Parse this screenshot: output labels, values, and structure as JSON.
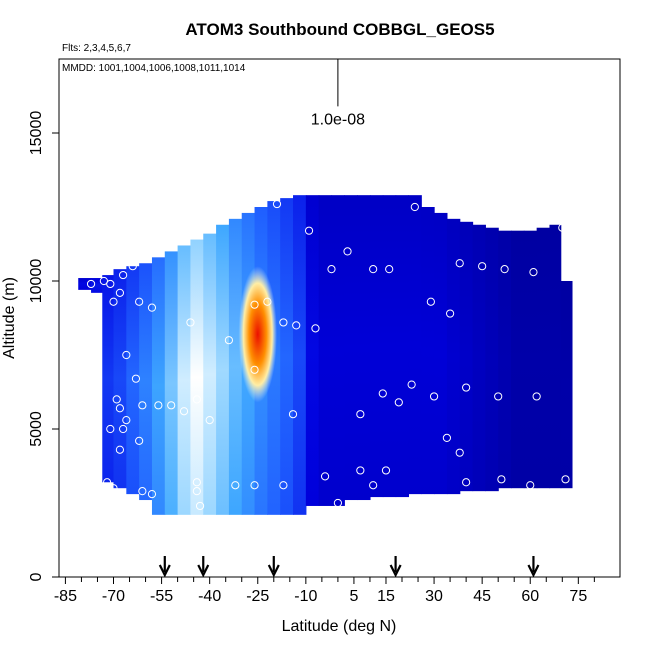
{
  "chart_data": {
    "type": "heatmap",
    "title": "ATOM3 Southbound COBBGL_GEOS5",
    "flights_note": "Flts: 2,3,4,5,6,7",
    "dates_note": "MMDD: 1001,1004,1006,1008,1011,1014",
    "scale_label": "1.0e-08",
    "xlabel": "Latitude (deg N)",
    "ylabel": "Altitude (m)",
    "xlim": [
      -87,
      88
    ],
    "ylim": [
      0,
      17500
    ],
    "x_tick_labels": [
      "-85",
      "-70",
      "-55",
      "-40",
      "-25",
      "-10",
      "5",
      "15",
      "30",
      "45",
      "60",
      "75"
    ],
    "x_tick_values": [
      -85,
      -70,
      -55,
      -40,
      -25,
      -10,
      5,
      15,
      30,
      45,
      60,
      75
    ],
    "y_tick_labels": [
      "0",
      "5000",
      "10000",
      "15000"
    ],
    "y_tick_values": [
      0,
      5000,
      10000,
      15000
    ],
    "grid": false,
    "colormap": [
      "#00008b",
      "#0000e0",
      "#1e5bff",
      "#3ea8ff",
      "#a6dcff",
      "#ffffff",
      "#ffe98a",
      "#ffb000",
      "#ff5a00",
      "#e60000"
    ],
    "field_columns": [
      {
        "x": -79,
        "bottom": 9700,
        "top": 10100,
        "value": 0.12
      },
      {
        "x": -75,
        "bottom": 9600,
        "top": 10100,
        "value": 0.14
      },
      {
        "x": -72,
        "bottom": 3200,
        "top": 10200,
        "value": 0.18
      },
      {
        "x": -68,
        "bottom": 3000,
        "top": 10400,
        "value": 0.2
      },
      {
        "x": -64,
        "bottom": 2800,
        "top": 10500,
        "value": 0.24
      },
      {
        "x": -60,
        "bottom": 2600,
        "top": 10600,
        "value": 0.28
      },
      {
        "x": -56,
        "bottom": 2100,
        "top": 10800,
        "value": 0.33
      },
      {
        "x": -52,
        "bottom": 2100,
        "top": 11000,
        "value": 0.4
      },
      {
        "x": -48,
        "bottom": 2100,
        "top": 11200,
        "value": 0.5
      },
      {
        "x": -44,
        "bottom": 2100,
        "top": 11400,
        "value": 0.56
      },
      {
        "x": -40,
        "bottom": 2100,
        "top": 11600,
        "value": 0.5
      },
      {
        "x": -36,
        "bottom": 2100,
        "top": 11900,
        "value": 0.44
      },
      {
        "x": -32,
        "bottom": 2100,
        "top": 12100,
        "value": 0.38
      },
      {
        "x": -28,
        "bottom": 2100,
        "top": 12300,
        "value": 0.34
      },
      {
        "x": -24,
        "bottom": 2100,
        "top": 12500,
        "value": 0.3
      },
      {
        "x": -20,
        "bottom": 2100,
        "top": 12700,
        "value": 0.27
      },
      {
        "x": -16,
        "bottom": 2100,
        "top": 12800,
        "value": 0.24
      },
      {
        "x": -12,
        "bottom": 2100,
        "top": 12900,
        "value": 0.2
      },
      {
        "x": -8,
        "bottom": 2400,
        "top": 12900,
        "value": 0.12
      },
      {
        "x": -4,
        "bottom": 2400,
        "top": 12900,
        "value": 0.1
      },
      {
        "x": 0,
        "bottom": 2400,
        "top": 12900,
        "value": 0.1
      },
      {
        "x": 4,
        "bottom": 2600,
        "top": 12900,
        "value": 0.1
      },
      {
        "x": 8,
        "bottom": 2600,
        "top": 12900,
        "value": 0.1
      },
      {
        "x": 12,
        "bottom": 2700,
        "top": 12900,
        "value": 0.1
      },
      {
        "x": 16,
        "bottom": 2700,
        "top": 12900,
        "value": 0.1
      },
      {
        "x": 20,
        "bottom": 2700,
        "top": 12900,
        "value": 0.1
      },
      {
        "x": 24,
        "bottom": 2800,
        "top": 12900,
        "value": 0.1
      },
      {
        "x": 28,
        "bottom": 2800,
        "top": 12500,
        "value": 0.1
      },
      {
        "x": 32,
        "bottom": 2800,
        "top": 12300,
        "value": 0.1
      },
      {
        "x": 36,
        "bottom": 2800,
        "top": 12100,
        "value": 0.09
      },
      {
        "x": 40,
        "bottom": 2900,
        "top": 12000,
        "value": 0.08
      },
      {
        "x": 44,
        "bottom": 2900,
        "top": 11900,
        "value": 0.07
      },
      {
        "x": 48,
        "bottom": 2900,
        "top": 11800,
        "value": 0.06
      },
      {
        "x": 52,
        "bottom": 3000,
        "top": 11700,
        "value": 0.05
      },
      {
        "x": 56,
        "bottom": 3000,
        "top": 11700,
        "value": 0.04
      },
      {
        "x": 60,
        "bottom": 3000,
        "top": 11700,
        "value": 0.04
      },
      {
        "x": 64,
        "bottom": 3000,
        "top": 11800,
        "value": 0.04
      },
      {
        "x": 68,
        "bottom": 3000,
        "top": 11900,
        "value": 0.04
      },
      {
        "x": 71,
        "bottom": 3000,
        "top": 10000,
        "value": 0.04
      }
    ],
    "hotspot": {
      "x": -25,
      "y": 8200,
      "rx": 6,
      "ry": 2300,
      "value": 0.98
    },
    "sample_points": [
      [
        -84,
        9900
      ],
      [
        -77,
        9900
      ],
      [
        -73,
        10000
      ],
      [
        -71,
        9900
      ],
      [
        -70,
        9300
      ],
      [
        -68,
        9600
      ],
      [
        -67,
        10200
      ],
      [
        -64,
        10500
      ],
      [
        -62,
        9300
      ],
      [
        -58,
        9100
      ],
      [
        -46,
        8600
      ],
      [
        -34,
        8000
      ],
      [
        -26,
        9200
      ],
      [
        -22,
        9300
      ],
      [
        -17,
        8600
      ],
      [
        -13,
        8500
      ],
      [
        -7,
        8400
      ],
      [
        -19,
        12600
      ],
      [
        -9,
        11700
      ],
      [
        -2,
        10400
      ],
      [
        3,
        11000
      ],
      [
        11,
        10400
      ],
      [
        16,
        10400
      ],
      [
        24,
        12500
      ],
      [
        29,
        9300
      ],
      [
        35,
        8900
      ],
      [
        38,
        10600
      ],
      [
        45,
        10500
      ],
      [
        52,
        10400
      ],
      [
        61,
        10300
      ],
      [
        70,
        11800
      ],
      [
        -66,
        7500
      ],
      [
        -63,
        6700
      ],
      [
        -69,
        6000
      ],
      [
        -68,
        5700
      ],
      [
        -61,
        5800
      ],
      [
        -56,
        5800
      ],
      [
        -52,
        5800
      ],
      [
        -44,
        6000
      ],
      [
        -48,
        5600
      ],
      [
        -40,
        5300
      ],
      [
        -66,
        5300
      ],
      [
        -71,
        5000
      ],
      [
        -67,
        5000
      ],
      [
        -62,
        4600
      ],
      [
        -68,
        4300
      ],
      [
        -26,
        7000
      ],
      [
        -14,
        5500
      ],
      [
        7,
        5500
      ],
      [
        14,
        6200
      ],
      [
        19,
        5900
      ],
      [
        23,
        6500
      ],
      [
        30,
        6100
      ],
      [
        40,
        6400
      ],
      [
        50,
        6100
      ],
      [
        62,
        6100
      ],
      [
        34,
        4700
      ],
      [
        38,
        4200
      ],
      [
        7,
        3600
      ],
      [
        15,
        3600
      ],
      [
        -72,
        3200
      ],
      [
        -70,
        3000
      ],
      [
        -61,
        2900
      ],
      [
        -58,
        2800
      ],
      [
        -44,
        2900
      ],
      [
        -44,
        3200
      ],
      [
        -32,
        3100
      ],
      [
        -26,
        3100
      ],
      [
        -17,
        3100
      ],
      [
        -4,
        3400
      ],
      [
        11,
        3100
      ],
      [
        40,
        3200
      ],
      [
        51,
        3300
      ],
      [
        60,
        3100
      ],
      [
        71,
        3300
      ],
      [
        -43,
        2400
      ],
      [
        -53,
        1900
      ],
      [
        0,
        2500
      ]
    ],
    "sample_point_color": "#ffffff",
    "flight_markers_x": [
      -54,
      -42,
      -20,
      18,
      61
    ],
    "scale_bar": {
      "x": 0,
      "top": 17500,
      "bottom": 15900
    }
  }
}
